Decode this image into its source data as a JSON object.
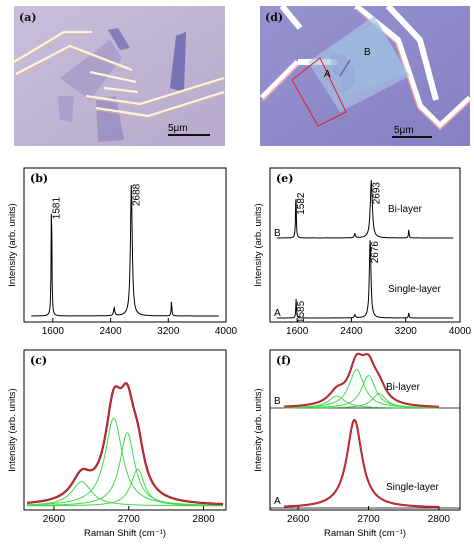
{
  "panels": {
    "a": {
      "label": "(a)",
      "scale_bar": "5μm"
    },
    "d": {
      "label": "(d)",
      "scale_bar": "5μm",
      "region_a": "A",
      "region_b": "B"
    }
  },
  "chart_data": [
    {
      "id": "b",
      "type": "line",
      "panel_label": "(b)",
      "ylabel": "Intensity (arb. units)",
      "xlabel": "",
      "xlim": [
        1200,
        4000
      ],
      "xticks": [
        1600,
        2400,
        3200,
        4000
      ],
      "peak_labels": [
        {
          "x": 1581,
          "text": "1581"
        },
        {
          "x": 2688,
          "text": "2688"
        }
      ],
      "peaks": [
        {
          "x": 1581,
          "height": 0.9,
          "width": 6
        },
        {
          "x": 2688,
          "height": 1.0,
          "width": 15
        },
        {
          "x": 2450,
          "height": 0.06,
          "width": 10
        },
        {
          "x": 3245,
          "height": 0.11,
          "width": 6
        }
      ]
    },
    {
      "id": "e",
      "type": "line",
      "panel_label": "(e)",
      "ylabel": "Intensity (arb. units)",
      "xlabel": "",
      "xlim": [
        1200,
        4000
      ],
      "xticks": [
        1600,
        2400,
        3200,
        4000
      ],
      "series": [
        {
          "name": "Bi-layer",
          "marker": "B",
          "peak_labels": [
            {
              "x": 1582,
              "text": "1582"
            },
            {
              "x": 2693,
              "text": "2693"
            }
          ],
          "peaks": [
            {
              "x": 1582,
              "height": 0.45,
              "width": 6
            },
            {
              "x": 2693,
              "height": 0.55,
              "width": 18
            },
            {
              "x": 2450,
              "height": 0.04,
              "width": 10
            },
            {
              "x": 3245,
              "height": 0.08,
              "width": 6
            }
          ]
        },
        {
          "name": "Single-layer",
          "marker": "A",
          "peak_labels": [
            {
              "x": 1585,
              "text": "1585"
            },
            {
              "x": 2676,
              "text": "2676"
            }
          ],
          "peaks": [
            {
              "x": 1585,
              "height": 0.18,
              "width": 6
            },
            {
              "x": 2676,
              "height": 0.75,
              "width": 14
            },
            {
              "x": 2450,
              "height": 0.03,
              "width": 10
            },
            {
              "x": 3245,
              "height": 0.05,
              "width": 6
            }
          ]
        }
      ]
    },
    {
      "id": "c",
      "type": "line",
      "panel_label": "(c)",
      "ylabel": "Intensity (arb. units)",
      "xlabel": "Raman Shift (cm⁻¹)",
      "xlim": [
        2560,
        2830
      ],
      "xticks": [
        2600,
        2700,
        2800
      ],
      "components": [
        {
          "x": 2637,
          "height": 0.2,
          "width": 16
        },
        {
          "x": 2680,
          "height": 0.72,
          "width": 14
        },
        {
          "x": 2698,
          "height": 0.6,
          "width": 12
        },
        {
          "x": 2712,
          "height": 0.3,
          "width": 11
        }
      ],
      "envelope_color": "#8a1c2b",
      "fit_color": "#e0302f",
      "component_color": "#46d84b"
    },
    {
      "id": "f",
      "type": "line",
      "panel_label": "(f)",
      "ylabel": "Intensity (arb. units)",
      "xlabel": "Raman Shift (cm⁻¹)",
      "xlim": [
        2560,
        2830
      ],
      "xticks": [
        2600,
        2700,
        2800
      ],
      "series": [
        {
          "name": "Bi-layer",
          "marker": "B",
          "components": [
            {
              "x": 2655,
              "height": 0.1,
              "width": 14
            },
            {
              "x": 2683,
              "height": 0.32,
              "width": 13
            },
            {
              "x": 2700,
              "height": 0.27,
              "width": 12
            },
            {
              "x": 2715,
              "height": 0.12,
              "width": 12
            }
          ]
        },
        {
          "name": "Single-layer",
          "marker": "A",
          "components": [
            {
              "x": 2680,
              "height": 0.8,
              "width": 13
            }
          ]
        }
      ],
      "envelope_color": "#8a1c2b",
      "fit_color": "#e0302f",
      "component_color": "#46d84b"
    }
  ]
}
